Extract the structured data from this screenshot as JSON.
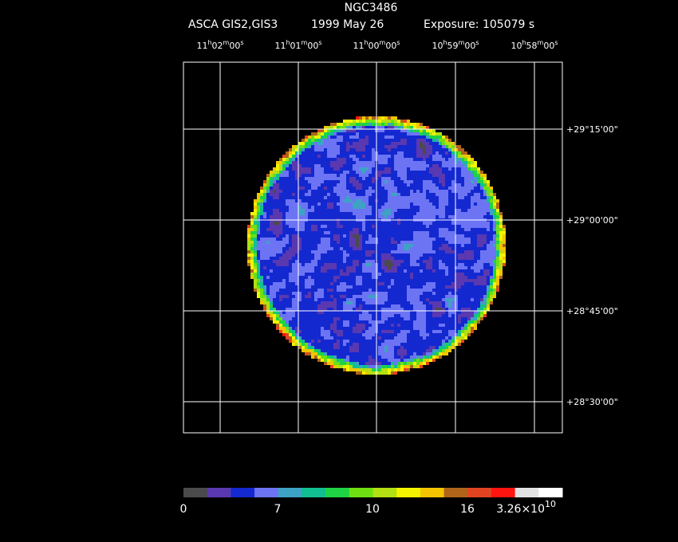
{
  "title": "NGC3486",
  "subtitle": {
    "instrument": "ASCA GIS2,GIS3",
    "date": "1999 May 26",
    "exposure": "Exposure: 105079 s"
  },
  "ra_labels": [
    [
      "11",
      "h",
      "02",
      "m",
      "00",
      "s"
    ],
    [
      "11",
      "h",
      "01",
      "m",
      "00",
      "s"
    ],
    [
      "11",
      "h",
      "00",
      "m",
      "00",
      "s"
    ],
    [
      "10",
      "h",
      "59",
      "m",
      "00",
      "s"
    ],
    [
      "10",
      "h",
      "58",
      "m",
      "00",
      "s"
    ]
  ],
  "dec_labels": [
    "+29°15'00\"",
    "+29°00'00\"",
    "+28°45'00\"",
    "+28°30'00\""
  ],
  "colorbar": {
    "colors": [
      "#4b4b4b",
      "#5a38b0",
      "#1428d0",
      "#6c74f4",
      "#3ea2c4",
      "#10c090",
      "#1ed444",
      "#6ee012",
      "#b2e012",
      "#f4f400",
      "#f4c400",
      "#b0641a",
      "#e24422",
      "#ff1410",
      "#e2e2e2",
      "#ffffff"
    ],
    "labels": [
      "0",
      "7",
      "10",
      "16"
    ],
    "max_label": [
      "3.26×10",
      "10"
    ]
  }
}
